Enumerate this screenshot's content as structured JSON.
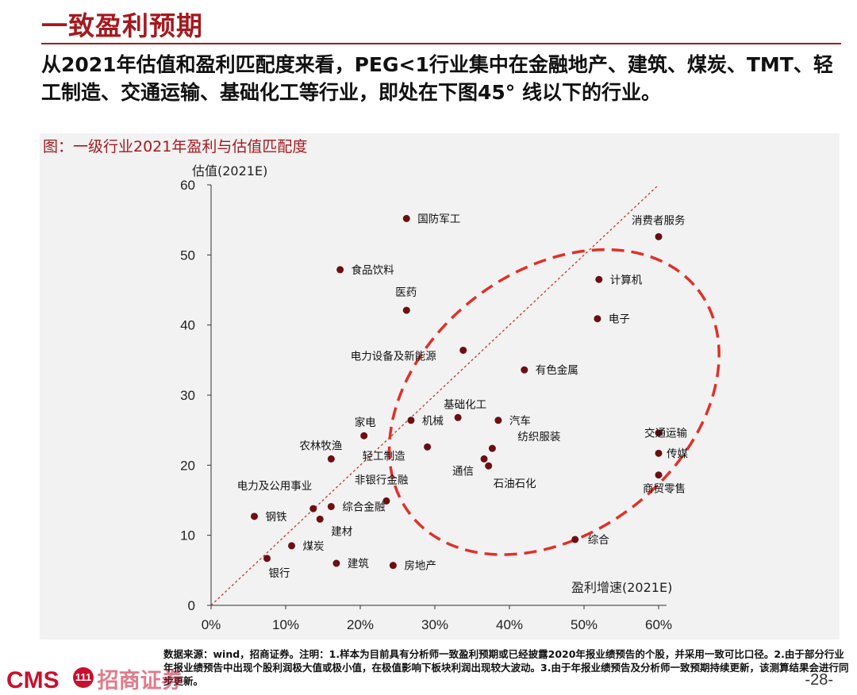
{
  "header": {
    "title": "一致盈利预期",
    "summary": "从2021年估值和盈利匹配度来看，PEG<1行业集中在金融地产、建筑、煤炭、TMT、轻工制造、交通运输、基础化工等行业，即处在下图45° 线以下的行业。"
  },
  "chart_caption": "图：一级行业2021年盈利与估值匹配度",
  "chart_data": {
    "type": "scatter",
    "ylabel": "估值(2021E)",
    "xlabel": "盈利增速(2021E)",
    "xlim": [
      0,
      0.6
    ],
    "ylim": [
      0,
      60
    ],
    "x_ticks": [
      "0%",
      "10%",
      "20%",
      "30%",
      "40%",
      "50%",
      "60%"
    ],
    "y_ticks": [
      "0",
      "10",
      "20",
      "30",
      "40",
      "50",
      "60"
    ],
    "reference_line": "45-degree dashed diagonal",
    "highlight": "dashed red ellipse around lower-right cluster",
    "marker_color": "#6b0f12",
    "points": [
      {
        "label": "国防军工",
        "x": 0.262,
        "y": 55.2
      },
      {
        "label": "消费者服务",
        "x": 0.6,
        "y": 52.6
      },
      {
        "label": "食品饮料",
        "x": 0.173,
        "y": 47.9
      },
      {
        "label": "计算机",
        "x": 0.52,
        "y": 46.5
      },
      {
        "label": "医药",
        "x": 0.262,
        "y": 42.1
      },
      {
        "label": "电子",
        "x": 0.518,
        "y": 40.9
      },
      {
        "label": "电力设备及新能源",
        "x": 0.338,
        "y": 36.4
      },
      {
        "label": "有色金属",
        "x": 0.42,
        "y": 33.6
      },
      {
        "label": "基础化工",
        "x": 0.331,
        "y": 26.8
      },
      {
        "label": "机械",
        "x": 0.268,
        "y": 26.4
      },
      {
        "label": "汽车",
        "x": 0.385,
        "y": 26.4
      },
      {
        "label": "家电",
        "x": 0.205,
        "y": 24.2
      },
      {
        "label": "交通运输",
        "x": 0.6,
        "y": 24.6
      },
      {
        "label": "纺织服装",
        "x": 0.377,
        "y": 22.4
      },
      {
        "label": "轻工制造",
        "x": 0.29,
        "y": 22.6
      },
      {
        "label": "农林牧渔",
        "x": 0.161,
        "y": 20.9
      },
      {
        "label": "传媒",
        "x": 0.6,
        "y": 21.7
      },
      {
        "label": "通信",
        "x": 0.366,
        "y": 20.9
      },
      {
        "label": "石油石化",
        "x": 0.372,
        "y": 19.9
      },
      {
        "label": "商贸零售",
        "x": 0.6,
        "y": 18.6
      },
      {
        "label": "非银行金融",
        "x": 0.235,
        "y": 14.9
      },
      {
        "label": "综合金融",
        "x": 0.161,
        "y": 14.1
      },
      {
        "label": "电力及公用事业",
        "x": 0.137,
        "y": 13.8
      },
      {
        "label": "钢铁",
        "x": 0.058,
        "y": 12.7
      },
      {
        "label": "建材",
        "x": 0.146,
        "y": 12.3
      },
      {
        "label": "综合",
        "x": 0.488,
        "y": 9.4
      },
      {
        "label": "煤炭",
        "x": 0.108,
        "y": 8.5
      },
      {
        "label": "银行",
        "x": 0.075,
        "y": 6.7
      },
      {
        "label": "建筑",
        "x": 0.168,
        "y": 6.0
      },
      {
        "label": "房地产",
        "x": 0.244,
        "y": 5.7
      }
    ]
  },
  "footer": {
    "logo": "CMS",
    "logo_badge": "111",
    "logo_cn": "招商证券",
    "note": "数据来源：wind，招商证券。注明：1.样本为目前具有分析师一致盈利预期或已经披露2020年报业绩预告的个股，并采用一致可比口径。2.由于部分行业年报业绩预告中出现个股利润极大值或极小值，在极值影响下板块利润出现较大波动。3.由于年报业绩预告及分析师一致预期持续更新，该测算结果会进行同步更新。",
    "page": "-28-"
  },
  "colors": {
    "accent": "#a31a1f",
    "ellipse": "#e0302a",
    "diagonal": "#c0392b",
    "marker": "#6b0f12"
  }
}
